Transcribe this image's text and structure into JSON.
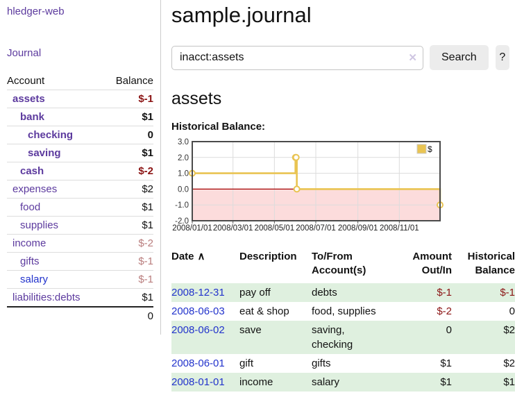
{
  "sidebar": {
    "brand": "hledger-web",
    "nav": {
      "journal": "Journal"
    },
    "accounts_table": {
      "headers": {
        "account": "Account",
        "balance": "Balance"
      },
      "rows": [
        {
          "name": "assets",
          "depth": 1,
          "bold": true,
          "balance": "$-1",
          "balance_tone": "neg-strong",
          "link_tone": "purple"
        },
        {
          "name": "bank",
          "depth": 2,
          "bold": true,
          "balance": "$1",
          "balance_tone": "normal",
          "link_tone": "purple"
        },
        {
          "name": "checking",
          "depth": 3,
          "bold": true,
          "balance": "0",
          "balance_tone": "normal",
          "link_tone": "purple"
        },
        {
          "name": "saving",
          "depth": 3,
          "bold": true,
          "balance": "$1",
          "balance_tone": "normal",
          "link_tone": "purple"
        },
        {
          "name": "cash",
          "depth": 2,
          "bold": true,
          "balance": "$-2",
          "balance_tone": "neg-strong",
          "link_tone": "purple"
        },
        {
          "name": "expenses",
          "depth": 1,
          "bold": false,
          "balance": "$2",
          "balance_tone": "normal",
          "link_tone": "purple"
        },
        {
          "name": "food",
          "depth": 2,
          "bold": false,
          "balance": "$1",
          "balance_tone": "normal",
          "link_tone": "purple"
        },
        {
          "name": "supplies",
          "depth": 2,
          "bold": false,
          "balance": "$1",
          "balance_tone": "normal",
          "link_tone": "purple"
        },
        {
          "name": "income",
          "depth": 1,
          "bold": false,
          "balance": "$-2",
          "balance_tone": "neg-soft",
          "link_tone": "purple"
        },
        {
          "name": "gifts",
          "depth": 2,
          "bold": false,
          "balance": "$-1",
          "balance_tone": "neg-soft",
          "link_tone": "purple"
        },
        {
          "name": "salary",
          "depth": 2,
          "bold": false,
          "balance": "$-1",
          "balance_tone": "neg-soft",
          "link_tone": "blue"
        },
        {
          "name": "liabilities:debts",
          "depth": 1,
          "bold": false,
          "balance": "$1",
          "balance_tone": "normal",
          "link_tone": "purple"
        }
      ],
      "total": "0"
    }
  },
  "header": {
    "title": "sample.journal"
  },
  "search": {
    "query": "inacct:assets",
    "clear_icon": "✕",
    "search_label": "Search",
    "help_label": "?"
  },
  "account_page": {
    "title": "assets",
    "chart_label": "Historical Balance:"
  },
  "chart_data": {
    "type": "line",
    "step": true,
    "title": "Historical Balance",
    "series": [
      {
        "name": "$",
        "color": "#e9c452",
        "points": [
          [
            "2008-01-01",
            1
          ],
          [
            "2008-06-01",
            2
          ],
          [
            "2008-06-02",
            2
          ],
          [
            "2008-06-03",
            0
          ],
          [
            "2008-12-31",
            -1
          ]
        ]
      }
    ],
    "x_range": [
      "2008-01-01",
      "2008-12-31"
    ],
    "ylim": [
      -2,
      3
    ],
    "y_ticks": [
      "3.0",
      "2.0",
      "1.0",
      "0.0",
      "-1.0",
      "-2.0"
    ],
    "y_tick_values": [
      3,
      2,
      1,
      0,
      -1,
      -2
    ],
    "x_ticks": [
      {
        "date": "2008-01-01",
        "label": "2008/01/01"
      },
      {
        "date": "2008-03-01",
        "label": "2008/03/01"
      },
      {
        "date": "2008-05-01",
        "label": "2008/05/01"
      },
      {
        "date": "2008-07-01",
        "label": "2008/07/01"
      },
      {
        "date": "2008-09-01",
        "label": "2008/09/01"
      },
      {
        "date": "2008-11-01",
        "label": "2008/11/01"
      }
    ],
    "legend": {
      "position": "top-right",
      "entries": [
        "$"
      ]
    },
    "grid": true,
    "colors": {
      "line": "#e9c452",
      "negative_region": "#fcdcdc",
      "zero_line": "#a40000",
      "gridline": "#dcdcdc",
      "border": "#4a4a4a"
    }
  },
  "register": {
    "columns": [
      {
        "label": "Date",
        "sort_icon": "∧",
        "align": "left"
      },
      {
        "label": "Description",
        "align": "left"
      },
      {
        "label": "To/From Account(s)",
        "align": "left"
      },
      {
        "label": "Amount Out/In",
        "align": "right"
      },
      {
        "label": "Historical Balance",
        "align": "right"
      }
    ],
    "rows": [
      {
        "date": "2008-12-31",
        "description": "pay off",
        "accounts": "debts",
        "amount": "$-1",
        "amount_tone": "neg",
        "balance": "$-1",
        "balance_tone": "neg"
      },
      {
        "date": "2008-06-03",
        "description": "eat & shop",
        "accounts": "food, supplies",
        "amount": "$-2",
        "amount_tone": "neg",
        "balance": "0",
        "balance_tone": "normal"
      },
      {
        "date": "2008-06-02",
        "description": "save",
        "accounts": "saving, checking",
        "amount": "0",
        "amount_tone": "normal",
        "balance": "$2",
        "balance_tone": "normal"
      },
      {
        "date": "2008-06-01",
        "description": "gift",
        "accounts": "gifts",
        "amount": "$1",
        "amount_tone": "normal",
        "balance": "$2",
        "balance_tone": "normal"
      },
      {
        "date": "2008-01-01",
        "description": "income",
        "accounts": "salary",
        "amount": "$1",
        "amount_tone": "normal",
        "balance": "$1",
        "balance_tone": "normal"
      }
    ]
  },
  "colors": {
    "link_purple": "#5c3a9e",
    "link_blue": "#2233cc",
    "neg_strong": "#8b1414",
    "neg_soft": "#b97d7d",
    "row_shaded": "#dff0df"
  }
}
